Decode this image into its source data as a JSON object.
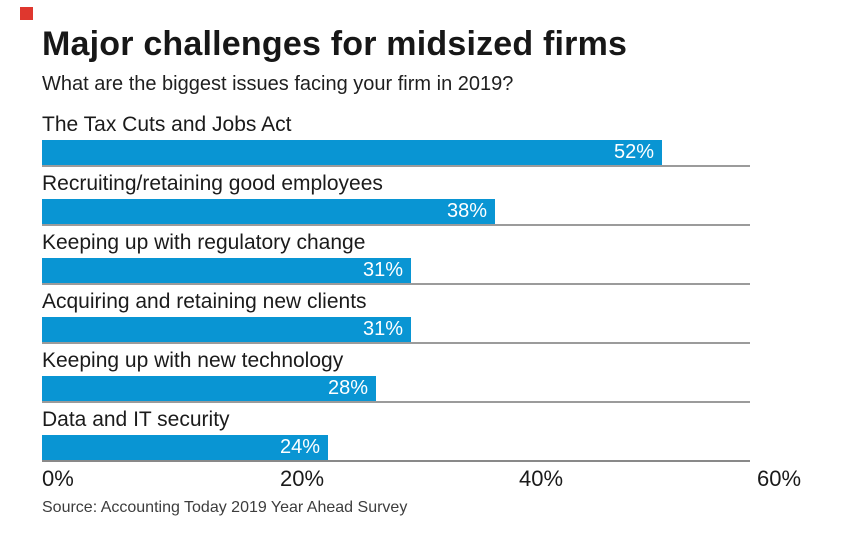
{
  "header": {
    "title": "Major challenges for midsized firms",
    "subtitle": "What are the biggest issues facing your firm in 2019?"
  },
  "footer": {
    "source": "Source: Accounting Today 2019 Year Ahead Survey"
  },
  "colors": {
    "bar": "#0995d3",
    "bar_value_text": "#ffffff",
    "brand_square": "#df372e",
    "separator": "#9b9b9b",
    "axis_line": "#898989",
    "text": "#1a1a1a"
  },
  "chart_data": {
    "type": "bar",
    "orientation": "horizontal",
    "title": "Major challenges for midsized firms",
    "subtitle": "What are the biggest issues facing your firm in 2019?",
    "xlim": [
      0,
      60
    ],
    "grid": false,
    "legend": false,
    "value_label_position": "inside-bar-right",
    "bars": [
      {
        "category": "The Tax Cuts and Jobs Act",
        "value": 52,
        "display": "52%"
      },
      {
        "category": "Recruiting/retaining good employees",
        "value": 38,
        "display": "38%"
      },
      {
        "category": "Keeping up with regulatory change",
        "value": 31,
        "display": "31%"
      },
      {
        "category": "Acquiring and retaining new clients",
        "value": 31,
        "display": "31%"
      },
      {
        "category": "Keeping up with new technology",
        "value": 28,
        "display": "28%"
      },
      {
        "category": "Data and IT security",
        "value": 24,
        "display": "24%"
      }
    ],
    "x_ticks": [
      {
        "label": "0%",
        "value": 0
      },
      {
        "label": "20%",
        "value": 20
      },
      {
        "label": "40%",
        "value": 40
      },
      {
        "label": "60%",
        "value": 60
      }
    ],
    "source": "Source: Accounting Today 2019 Year Ahead Survey"
  }
}
